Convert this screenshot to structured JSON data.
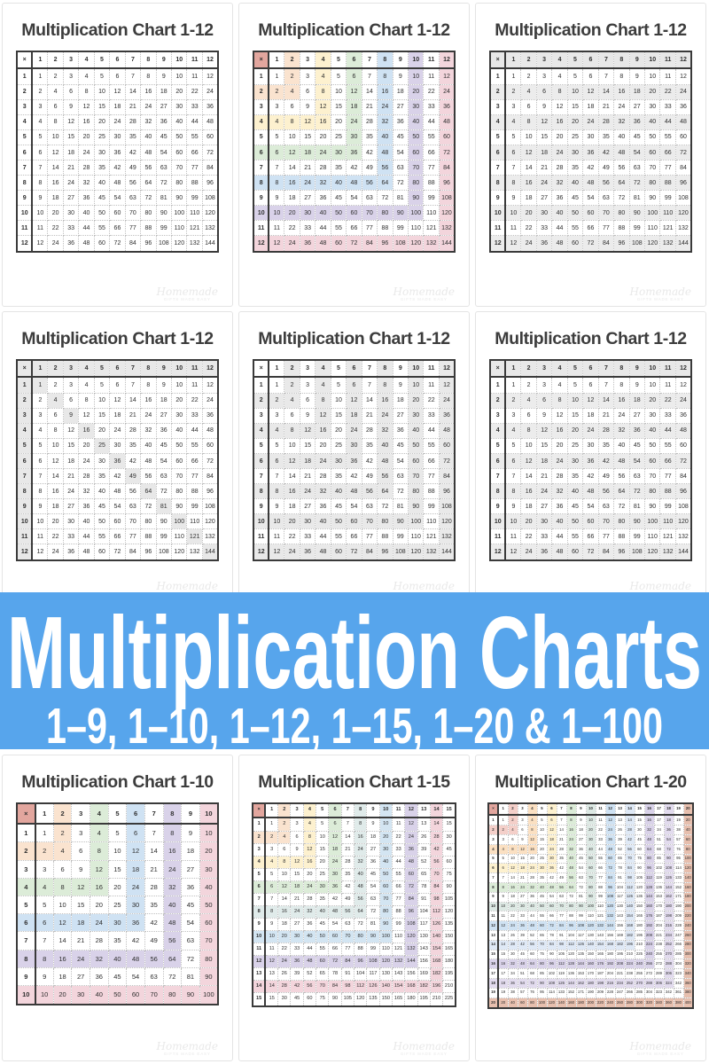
{
  "banner": {
    "title": "Multiplication Charts",
    "subtitle": "1–9, 1–10, 1–12, 1–15, 1–20 & 1–100"
  },
  "watermark": {
    "script": "Homemade",
    "sub": "GIFTS MADE EASY"
  },
  "colors": {
    "banner_bg": "#57a5ec",
    "banner_text": "#ffffff",
    "header_gray": "#e8e8e8",
    "zebra_gray": "#ececec",
    "band_gray": "#e9e9e9",
    "corner_salmon": "#e2a69e",
    "table_border": "#3a3a3a",
    "title_text": "#3d3d3d"
  },
  "chart_data": [
    {
      "type": "table",
      "title": "Multiplication Chart 1-12",
      "operator": "×",
      "row_labels": [
        1,
        2,
        3,
        4,
        5,
        6,
        7,
        8,
        9,
        10,
        11,
        12
      ],
      "col_labels": [
        1,
        2,
        3,
        4,
        5,
        6,
        7,
        8,
        9,
        10,
        11,
        12
      ],
      "cell_rule": "cell = row label × column label",
      "style": "plain",
      "highlight": "none"
    },
    {
      "type": "table",
      "title": "Multiplication Chart 1-12",
      "operator": "×",
      "row_labels": [
        1,
        2,
        3,
        4,
        5,
        6,
        7,
        8,
        9,
        10,
        11,
        12
      ],
      "col_labels": [
        1,
        2,
        3,
        4,
        5,
        6,
        7,
        8,
        9,
        10,
        11,
        12
      ],
      "cell_rule": "cell = row label × column label",
      "style": "bands",
      "corner_bg": "#e2a69e",
      "highlight": "even times tables highlighted as pastel L-shaped bands",
      "palette": {
        "2": "#fae3cf",
        "4": "#fdf1cf",
        "6": "#dcecd8",
        "8": "#cfe2f3",
        "10": "#d9d2e9",
        "12": "#f3d5dc"
      }
    },
    {
      "type": "table",
      "title": "Multiplication Chart 1-12",
      "operator": "×",
      "row_labels": [
        1,
        2,
        3,
        4,
        5,
        6,
        7,
        8,
        9,
        10,
        11,
        12
      ],
      "col_labels": [
        1,
        2,
        3,
        4,
        5,
        6,
        7,
        8,
        9,
        10,
        11,
        12
      ],
      "cell_rule": "cell = row label × column label",
      "style": "zebra",
      "highlight": "header row and even rows shaded light gray"
    },
    {
      "type": "table",
      "title": "Multiplication Chart 1-12",
      "operator": "×",
      "row_labels": [
        1,
        2,
        3,
        4,
        5,
        6,
        7,
        8,
        9,
        10,
        11,
        12
      ],
      "col_labels": [
        1,
        2,
        3,
        4,
        5,
        6,
        7,
        8,
        9,
        10,
        11,
        12
      ],
      "cell_rule": "cell = row label × column label",
      "style": "diagonal",
      "highlight": "header row, header column and square-number diagonal shaded light gray"
    },
    {
      "type": "table",
      "title": "Multiplication Chart 1-12",
      "operator": "×",
      "row_labels": [
        1,
        2,
        3,
        4,
        5,
        6,
        7,
        8,
        9,
        10,
        11,
        12
      ],
      "col_labels": [
        1,
        2,
        3,
        4,
        5,
        6,
        7,
        8,
        9,
        10,
        11,
        12
      ],
      "cell_rule": "cell = row label × column label",
      "style": "bands-gray",
      "highlight": "even times tables shaded as light gray L-shaped bands"
    },
    {
      "type": "table",
      "title": "Multiplication Chart 1-12",
      "operator": "×",
      "row_labels": [
        1,
        2,
        3,
        4,
        5,
        6,
        7,
        8,
        9,
        10,
        11,
        12
      ],
      "col_labels": [
        1,
        2,
        3,
        4,
        5,
        6,
        7,
        8,
        9,
        10,
        11,
        12
      ],
      "cell_rule": "cell = row label × column label",
      "style": "zebra",
      "highlight": "header row and even rows shaded light gray"
    },
    {
      "type": "table",
      "title": "Multiplication Chart 1-10",
      "operator": "×",
      "row_labels": [
        1,
        2,
        3,
        4,
        5,
        6,
        7,
        8,
        9,
        10
      ],
      "col_labels": [
        1,
        2,
        3,
        4,
        5,
        6,
        7,
        8,
        9,
        10
      ],
      "cell_rule": "cell = row label × column label",
      "style": "bands",
      "corner_bg": "#e2a69e",
      "highlight": "even times tables highlighted as pastel L-shaped bands",
      "palette": {
        "2": "#fae3cf",
        "4": "#dcecd8",
        "6": "#cfe2f3",
        "8": "#d9d2e9",
        "10": "#f3d5dc"
      }
    },
    {
      "type": "table",
      "title": "Multiplication Chart 1-15",
      "operator": "×",
      "row_labels": [
        1,
        2,
        3,
        4,
        5,
        6,
        7,
        8,
        9,
        10,
        11,
        12,
        13,
        14,
        15
      ],
      "col_labels": [
        1,
        2,
        3,
        4,
        5,
        6,
        7,
        8,
        9,
        10,
        11,
        12,
        13,
        14,
        15
      ],
      "cell_rule": "cell = row label × column label",
      "style": "bands",
      "corner_bg": "#e2a69e",
      "highlight": "even times tables highlighted as pastel L-shaped bands",
      "palette": {
        "2": "#fae3cf",
        "4": "#fdf1cf",
        "6": "#dcecd8",
        "8": "#e0ebea",
        "10": "#d3e5f2",
        "12": "#d9d2e9",
        "14": "#f3d5dc"
      }
    },
    {
      "type": "table",
      "title": "Multiplication Chart 1-20",
      "operator": "×",
      "row_labels": [
        1,
        2,
        3,
        4,
        5,
        6,
        7,
        8,
        9,
        10,
        11,
        12,
        13,
        14,
        15,
        16,
        17,
        18,
        19,
        20
      ],
      "col_labels": [
        1,
        2,
        3,
        4,
        5,
        6,
        7,
        8,
        9,
        10,
        11,
        12,
        13,
        14,
        15,
        16,
        17,
        18,
        19,
        20
      ],
      "cell_rule": "cell = row label × column label",
      "style": "bands",
      "corner_bg": "#e2a69e",
      "highlight": "even times tables highlighted as pastel L-shaped bands",
      "palette": {
        "2": "#f4cfc9",
        "4": "#fbe0c2",
        "6": "#fdf1cf",
        "8": "#dcecd8",
        "10": "#dde9e4",
        "12": "#cfe2f3",
        "14": "#dfe9f6",
        "16": "#d9d2e9",
        "18": "#e2dbee",
        "20": "#e7bfae"
      }
    }
  ]
}
